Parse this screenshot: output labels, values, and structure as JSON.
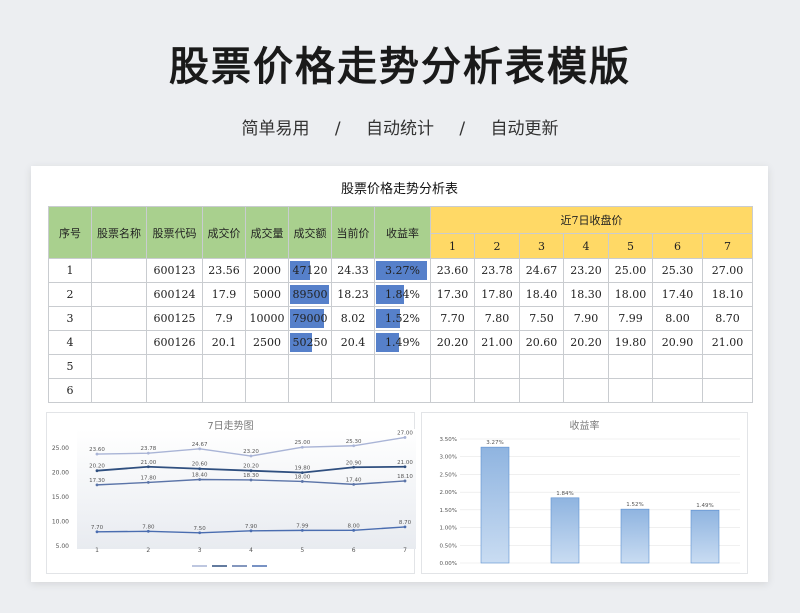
{
  "header": {
    "title": "股票价格走势分析表模版",
    "subtitle": [
      "简单易用",
      "/",
      "自动统计",
      "/",
      "自动更新"
    ]
  },
  "sheet": {
    "title": "股票价格走势分析表",
    "columns": [
      "序号",
      "股票名称",
      "股票代码",
      "成交价",
      "成交量",
      "成交额",
      "当前价",
      "收益率"
    ],
    "group_header": "近7日收盘价",
    "day_headers": [
      "1",
      "2",
      "3",
      "4",
      "5",
      "6",
      "7"
    ],
    "rows": [
      {
        "no": "1",
        "name": "",
        "code": "600123",
        "price": "23.56",
        "volume": "2000",
        "amount": "47120",
        "current": "24.33",
        "yield": "3.27%",
        "days": [
          "23.60",
          "23.78",
          "24.67",
          "23.20",
          "25.00",
          "25.30",
          "27.00"
        ]
      },
      {
        "no": "2",
        "name": "",
        "code": "600124",
        "price": "17.9",
        "volume": "5000",
        "amount": "89500",
        "current": "18.23",
        "yield": "1.84%",
        "days": [
          "17.30",
          "17.80",
          "18.40",
          "18.30",
          "18.00",
          "17.40",
          "18.10"
        ]
      },
      {
        "no": "3",
        "name": "",
        "code": "600125",
        "price": "7.9",
        "volume": "10000",
        "amount": "79000",
        "current": "8.02",
        "yield": "1.52%",
        "days": [
          "7.70",
          "7.80",
          "7.50",
          "7.90",
          "7.99",
          "8.00",
          "8.70"
        ]
      },
      {
        "no": "4",
        "name": "",
        "code": "600126",
        "price": "20.1",
        "volume": "2500",
        "amount": "50250",
        "current": "20.4",
        "yield": "1.49%",
        "days": [
          "20.20",
          "21.00",
          "20.60",
          "20.20",
          "19.80",
          "20.90",
          "21.00"
        ]
      },
      {
        "no": "5",
        "name": "",
        "code": "",
        "price": "",
        "volume": "",
        "amount": "",
        "current": "",
        "yield": "",
        "days": [
          "",
          "",
          "",
          "",
          "",
          "",
          ""
        ]
      },
      {
        "no": "6",
        "name": "",
        "code": "",
        "price": "",
        "volume": "",
        "amount": "",
        "current": "",
        "yield": "",
        "days": [
          "",
          "",
          "",
          "",
          "",
          "",
          ""
        ]
      }
    ]
  },
  "colors": {
    "header_green": "#a9d08e",
    "header_yellow": "#ffd966",
    "data_bar_blue": "#4472c4",
    "line_series": [
      "#a9b4d6",
      "#2f4f7f",
      "#5b74a8",
      "#4a6db0"
    ],
    "bar_series": "#9dc3e6"
  },
  "chart_data": [
    {
      "type": "line",
      "title": "7日走势图",
      "x": [
        1,
        2,
        3,
        4,
        5,
        6,
        7
      ],
      "ylim": [
        5,
        27.5
      ],
      "yticks": [
        "5.00",
        "10.00",
        "15.00",
        "20.00",
        "25.00"
      ],
      "series": [
        {
          "values": [
            23.6,
            23.78,
            24.67,
            23.2,
            25.0,
            25.3,
            27.0
          ],
          "labels": [
            "23.60",
            "23.78",
            "24.67",
            "23.20",
            "25.00",
            "25.30",
            "27.00"
          ]
        },
        {
          "values": [
            20.2,
            21.0,
            20.6,
            20.2,
            19.8,
            20.9,
            21.0
          ],
          "labels": [
            "20.20",
            "21.00",
            "20.60",
            "20.20",
            "19.80",
            "20.90",
            "21.00"
          ]
        },
        {
          "values": [
            17.3,
            17.8,
            18.4,
            18.3,
            18.0,
            17.4,
            18.1
          ],
          "labels": [
            "17.30",
            "17.80",
            "18.40",
            "18.30",
            "18.00",
            "17.40",
            "18.10"
          ]
        },
        {
          "values": [
            7.7,
            7.8,
            7.5,
            7.9,
            7.99,
            8.0,
            8.7
          ],
          "labels": [
            "7.70",
            "7.80",
            "7.50",
            "7.90",
            "7.99",
            "8.00",
            "8.70"
          ]
        }
      ],
      "legend": "bottom"
    },
    {
      "type": "bar",
      "title": "收益率",
      "categories": [
        "",
        "",
        "",
        ""
      ],
      "values": [
        3.27,
        1.84,
        1.52,
        1.49
      ],
      "labels": [
        "3.27%",
        "1.84%",
        "1.52%",
        "1.49%"
      ],
      "ylim": [
        0,
        3.5
      ],
      "yticks": [
        "0.00%",
        "0.50%",
        "1.00%",
        "1.50%",
        "2.00%",
        "2.50%",
        "3.00%",
        "3.50%"
      ]
    }
  ]
}
